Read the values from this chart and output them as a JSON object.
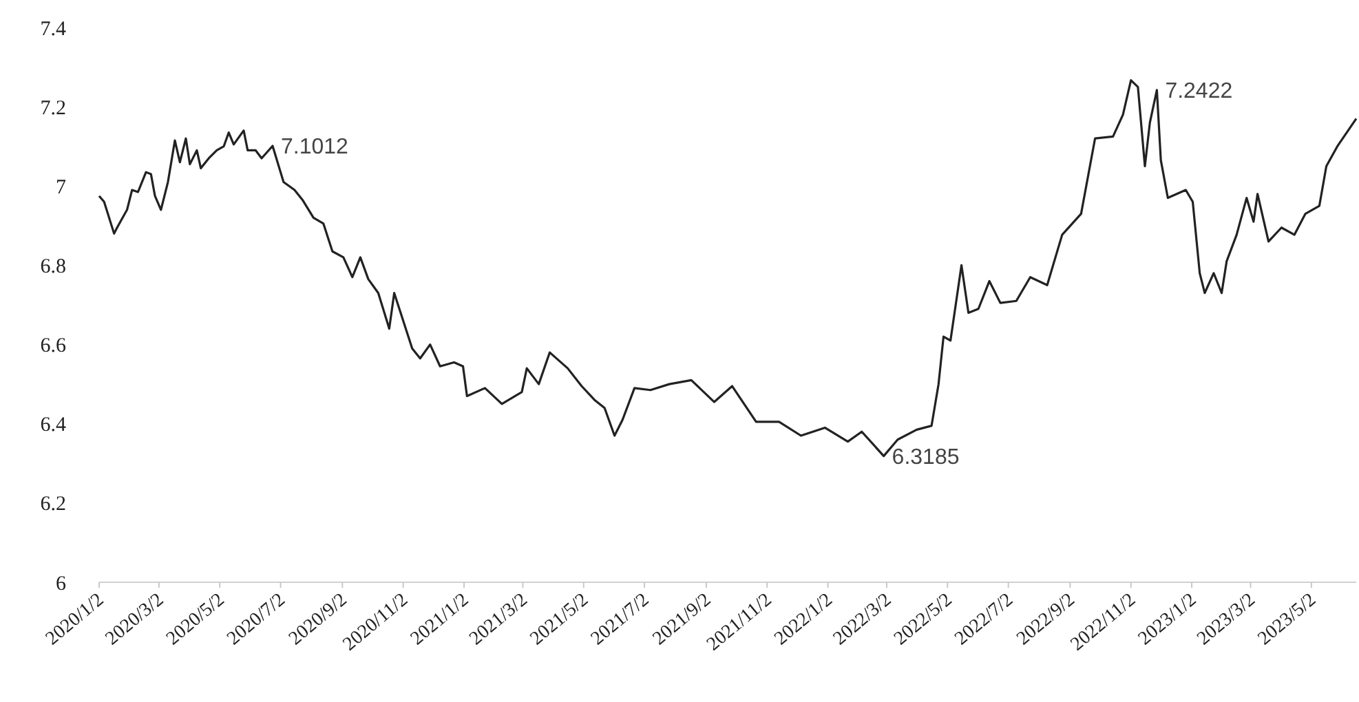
{
  "chart_data": {
    "type": "line",
    "x": [
      "2020-01-02",
      "2020-01-07",
      "2020-01-17",
      "2020-01-20",
      "2020-01-30",
      "2020-02-04",
      "2020-02-10",
      "2020-02-18",
      "2020-02-23",
      "2020-02-27",
      "2020-03-04",
      "2020-03-11",
      "2020-03-18",
      "2020-03-23",
      "2020-03-29",
      "2020-04-02",
      "2020-04-09",
      "2020-04-13",
      "2020-04-21",
      "2020-04-29",
      "2020-05-06",
      "2020-05-11",
      "2020-05-16",
      "2020-05-26",
      "2020-05-30",
      "2020-06-07",
      "2020-06-13",
      "2020-06-24",
      "2020-07-05",
      "2020-07-16",
      "2020-07-24",
      "2020-08-04",
      "2020-08-14",
      "2020-08-23",
      "2020-09-03",
      "2020-09-12",
      "2020-09-20",
      "2020-09-28",
      "2020-10-08",
      "2020-10-19",
      "2020-10-24",
      "2020-11-02",
      "2020-11-11",
      "2020-11-19",
      "2020-11-29",
      "2020-12-09",
      "2020-12-23",
      "2021-01-01",
      "2021-01-05",
      "2021-01-23",
      "2021-02-09",
      "2021-03-01",
      "2021-03-06",
      "2021-03-18",
      "2021-03-29",
      "2021-04-16",
      "2021-04-30",
      "2021-05-13",
      "2021-05-23",
      "2021-06-02",
      "2021-06-10",
      "2021-06-22",
      "2021-07-08",
      "2021-07-27",
      "2021-08-18",
      "2021-09-10",
      "2021-09-28",
      "2021-10-22",
      "2021-11-14",
      "2021-12-06",
      "2021-12-30",
      "2022-01-22",
      "2022-02-05",
      "2022-02-27",
      "2022-03-13",
      "2022-04-01",
      "2022-04-16",
      "2022-04-23",
      "2022-04-28",
      "2022-05-05",
      "2022-05-16",
      "2022-05-23",
      "2022-06-02",
      "2022-06-13",
      "2022-06-24",
      "2022-07-10",
      "2022-07-24",
      "2022-08-10",
      "2022-08-25",
      "2022-09-13",
      "2022-09-27",
      "2022-10-15",
      "2022-10-25",
      "2022-11-02",
      "2022-11-09",
      "2022-11-16",
      "2022-11-21",
      "2022-11-28",
      "2022-12-02",
      "2022-12-09",
      "2022-12-27",
      "2023-01-03",
      "2023-01-10",
      "2023-01-15",
      "2023-01-24",
      "2023-02-01",
      "2023-02-06",
      "2023-02-16",
      "2023-02-26",
      "2023-03-05",
      "2023-03-09",
      "2023-03-20",
      "2023-04-02",
      "2023-04-15",
      "2023-04-26",
      "2023-05-10",
      "2023-05-17",
      "2023-05-28",
      "2023-06-16"
    ],
    "series": [
      {
        "color": "#222222",
        "values": [
          6.975,
          6.96,
          6.88,
          6.895,
          6.94,
          6.99,
          6.985,
          7.035,
          7.03,
          6.975,
          6.94,
          7.01,
          7.115,
          7.06,
          7.12,
          7.055,
          7.09,
          7.045,
          7.07,
          7.09,
          7.1,
          7.135,
          7.105,
          7.14,
          7.09,
          7.09,
          7.07,
          7.1012,
          7.01,
          6.99,
          6.965,
          6.92,
          6.905,
          6.835,
          6.82,
          6.77,
          6.82,
          6.765,
          6.73,
          6.64,
          6.73,
          6.66,
          6.59,
          6.565,
          6.6,
          6.545,
          6.555,
          6.545,
          6.47,
          6.49,
          6.45,
          6.48,
          6.54,
          6.5,
          6.58,
          6.54,
          6.495,
          6.46,
          6.44,
          6.37,
          6.41,
          6.49,
          6.485,
          6.5,
          6.51,
          6.455,
          6.495,
          6.405,
          6.405,
          6.37,
          6.39,
          6.355,
          6.38,
          6.3185,
          6.36,
          6.385,
          6.395,
          6.5,
          6.62,
          6.61,
          6.8,
          6.68,
          6.69,
          6.76,
          6.705,
          6.71,
          6.77,
          6.75,
          6.877,
          6.93,
          7.12,
          7.125,
          7.18,
          7.267,
          7.25,
          7.05,
          7.16,
          7.2422,
          7.065,
          6.97,
          6.99,
          6.96,
          6.78,
          6.73,
          6.78,
          6.73,
          6.81,
          6.877,
          6.97,
          6.91,
          6.98,
          6.86,
          6.895,
          6.877,
          6.93,
          6.95,
          7.05,
          7.1,
          7.17
        ]
      }
    ],
    "xlim": [
      "2020-01-02",
      "2023-06-16"
    ],
    "xticks": [
      {
        "value": "2020-01-02",
        "label": "2020/1/2"
      },
      {
        "value": "2020-03-02",
        "label": "2020/3/2"
      },
      {
        "value": "2020-05-02",
        "label": "2020/5/2"
      },
      {
        "value": "2020-07-02",
        "label": "2020/7/2"
      },
      {
        "value": "2020-09-02",
        "label": "2020/9/2"
      },
      {
        "value": "2020-11-02",
        "label": "2020/11/2"
      },
      {
        "value": "2021-01-02",
        "label": "2021/1/2"
      },
      {
        "value": "2021-03-02",
        "label": "2021/3/2"
      },
      {
        "value": "2021-05-02",
        "label": "2021/5/2"
      },
      {
        "value": "2021-07-02",
        "label": "2021/7/2"
      },
      {
        "value": "2021-09-02",
        "label": "2021/9/2"
      },
      {
        "value": "2021-11-02",
        "label": "2021/11/2"
      },
      {
        "value": "2022-01-02",
        "label": "2022/1/2"
      },
      {
        "value": "2022-03-02",
        "label": "2022/3/2"
      },
      {
        "value": "2022-05-02",
        "label": "2022/5/2"
      },
      {
        "value": "2022-07-02",
        "label": "2022/7/2"
      },
      {
        "value": "2022-09-02",
        "label": "2022/9/2"
      },
      {
        "value": "2022-11-02",
        "label": "2022/11/2"
      },
      {
        "value": "2023-01-02",
        "label": "2023/1/2"
      },
      {
        "value": "2023-03-02",
        "label": "2023/3/2"
      },
      {
        "value": "2023-05-02",
        "label": "2023/5/2"
      }
    ],
    "ylim": [
      6,
      7.4
    ],
    "yticks": [
      6,
      6.2,
      6.4,
      6.6,
      6.8,
      7,
      7.2,
      7.4
    ],
    "annotations": [
      {
        "text": "7.1012",
        "x": "2020-06-24",
        "y": 7.1012
      },
      {
        "text": "6.3185",
        "x": "2022-02-27",
        "y": 6.3185
      },
      {
        "text": "7.2422",
        "x": "2022-11-28",
        "y": 7.2422
      }
    ]
  }
}
